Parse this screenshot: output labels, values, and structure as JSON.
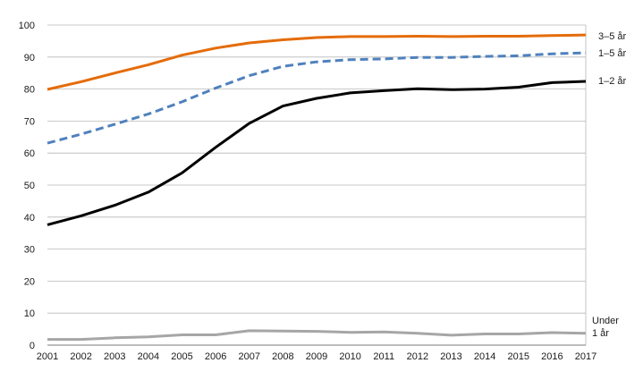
{
  "chart_data": {
    "type": "line",
    "title": "",
    "xlabel": "",
    "ylabel": "",
    "x": [
      2001,
      2002,
      2003,
      2004,
      2005,
      2006,
      2007,
      2008,
      2009,
      2010,
      2011,
      2012,
      2013,
      2014,
      2015,
      2016,
      2017
    ],
    "xlim": [
      2001,
      2017
    ],
    "ylim": [
      0,
      100
    ],
    "yticks": [
      0,
      10,
      20,
      30,
      40,
      50,
      60,
      70,
      80,
      90,
      100
    ],
    "xticks": [
      "2001",
      "2002",
      "2003",
      "2004",
      "2005",
      "2006",
      "2007",
      "2008",
      "2009",
      "2010",
      "2011",
      "2012",
      "2013",
      "2014",
      "2015",
      "2016",
      "2017"
    ],
    "grid": true,
    "legend": "direct labels at right end of lines",
    "series": [
      {
        "name": "3–5 år",
        "label_lines": [
          "3–5 år"
        ],
        "color": "#e46c0a",
        "style": "solid",
        "values": [
          79.9,
          82.3,
          85.0,
          87.6,
          90.6,
          92.8,
          94.4,
          95.4,
          96.1,
          96.4,
          96.4,
          96.5,
          96.4,
          96.5,
          96.5,
          96.7,
          96.9
        ]
      },
      {
        "name": "1–5 år",
        "label_lines": [
          "1–5 år"
        ],
        "color": "#4f81bd",
        "style": "dashed",
        "values": [
          63.1,
          65.9,
          69.0,
          72.2,
          76.0,
          80.3,
          84.2,
          87.1,
          88.5,
          89.2,
          89.4,
          89.9,
          89.9,
          90.2,
          90.4,
          91.0,
          91.3
        ]
      },
      {
        "name": "1–2 år",
        "label_lines": [
          "1–2 år"
        ],
        "color": "#000000",
        "style": "solid",
        "values": [
          37.6,
          40.4,
          43.7,
          47.8,
          53.8,
          61.8,
          69.3,
          74.7,
          77.1,
          78.8,
          79.5,
          80.1,
          79.8,
          80.0,
          80.6,
          82.0,
          82.4
        ]
      },
      {
        "name": "Under 1 år",
        "label_lines": [
          "Under",
          "1 år"
        ],
        "color": "#a6a6a6",
        "style": "solid",
        "values": [
          1.8,
          1.8,
          2.3,
          2.6,
          3.2,
          3.2,
          4.5,
          4.4,
          4.3,
          4.0,
          4.1,
          3.7,
          3.1,
          3.5,
          3.5,
          3.9,
          3.7
        ]
      }
    ]
  }
}
